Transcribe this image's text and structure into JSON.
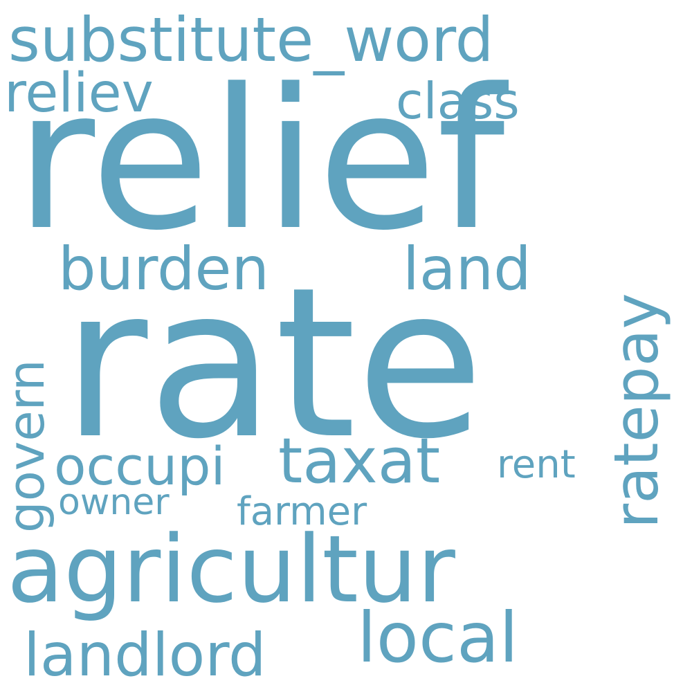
{
  "cloud": {
    "color": "#5fa3bf",
    "background": "#ffffff",
    "words": {
      "substitute_word": "substitute_word",
      "reliev": "reliev",
      "class": "class",
      "relief": "relief",
      "burden": "burden",
      "land": "land",
      "ratepay": "ratepay",
      "govern": "govern",
      "rate": "rate",
      "occupi": "occupi",
      "taxat": "taxat",
      "rent": "rent",
      "owner": "owner",
      "farmer": "farmer",
      "agricultur": "agricultur",
      "local": "local",
      "landlord": "landlord"
    }
  }
}
